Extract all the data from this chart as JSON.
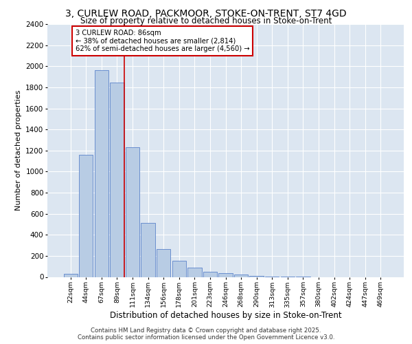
{
  "title_line1": "3, CURLEW ROAD, PACKMOOR, STOKE-ON-TRENT, ST7 4GD",
  "title_line2": "Size of property relative to detached houses in Stoke-on-Trent",
  "xlabel": "Distribution of detached houses by size in Stoke-on-Trent",
  "ylabel": "Number of detached properties",
  "categories": [
    "22sqm",
    "44sqm",
    "67sqm",
    "89sqm",
    "111sqm",
    "134sqm",
    "156sqm",
    "178sqm",
    "201sqm",
    "223sqm",
    "246sqm",
    "268sqm",
    "290sqm",
    "313sqm",
    "335sqm",
    "357sqm",
    "380sqm",
    "402sqm",
    "424sqm",
    "447sqm",
    "469sqm"
  ],
  "values": [
    30,
    1160,
    1960,
    1845,
    1230,
    515,
    265,
    155,
    90,
    48,
    35,
    20,
    8,
    3,
    1,
    1,
    0,
    0,
    0,
    0,
    0
  ],
  "bar_color": "#b8cce4",
  "bar_edge_color": "#4472c4",
  "vline_index": 3,
  "vline_color": "#cc0000",
  "annotation_text": "3 CURLEW ROAD: 86sqm\n← 38% of detached houses are smaller (2,814)\n62% of semi-detached houses are larger (4,560) →",
  "annotation_box_color": "#ffffff",
  "annotation_box_edge": "#cc0000",
  "ylim": [
    0,
    2400
  ],
  "yticks": [
    0,
    200,
    400,
    600,
    800,
    1000,
    1200,
    1400,
    1600,
    1800,
    2000,
    2200,
    2400
  ],
  "background_color": "#dce6f1",
  "footer_line1": "Contains HM Land Registry data © Crown copyright and database right 2025.",
  "footer_line2": "Contains public sector information licensed under the Open Government Licence v3.0."
}
